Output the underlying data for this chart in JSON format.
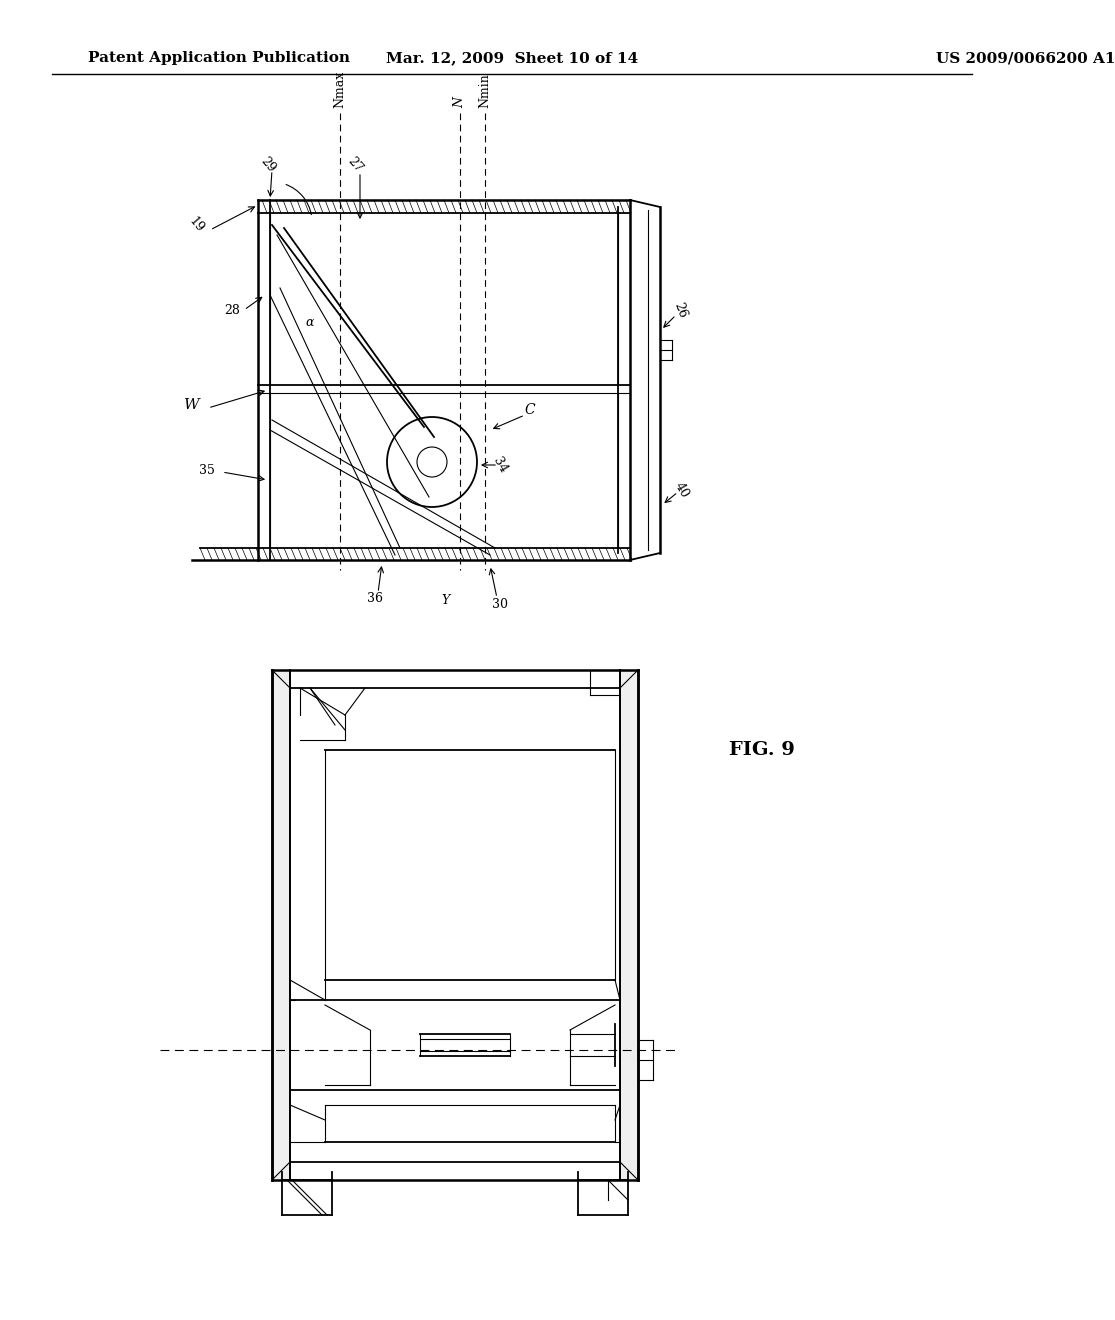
{
  "background_color": "#ffffff",
  "header": {
    "left": "Patent Application Publication",
    "center": "Mar. 12, 2009  Sheet 10 of 14",
    "right": "US 2009/0066200 A1",
    "fontsize": 11
  }
}
